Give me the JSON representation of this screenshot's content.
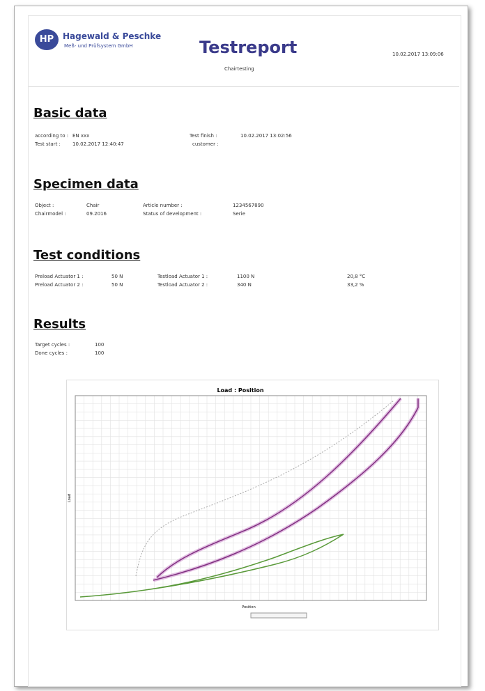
{
  "header": {
    "logo": "HP",
    "company": "Hagewald & Peschke",
    "company_sub": "Meß- und Prüfsystem GmbH",
    "title": "Testreport",
    "subtitle": "Chairtesting",
    "timestamp": "10.02.2017 13:09:06"
  },
  "basic_data": {
    "heading": "Basic data",
    "according_label": "according to :",
    "according_value": "EN xxx",
    "start_label": "Test start :",
    "start_value": "10.02.2017 12:40:47",
    "finish_label": "Test finish :",
    "finish_value": "10.02.2017 13:02:56",
    "customer_label": "customer :"
  },
  "specimen_data": {
    "heading": "Specimen data",
    "object_label": "Object :",
    "object_value": "Chair",
    "model_label": "Chairmodel :",
    "model_value": "09.2016",
    "article_label": "Article number :",
    "article_value": "1234567890",
    "status_label": "Status of development :",
    "status_value": "Serie"
  },
  "test_conditions": {
    "heading": "Test conditions",
    "pre1_label": "Preload Actuator 1 :",
    "pre1_value": "50 N",
    "pre2_label": "Preload Actuator 2 :",
    "pre2_value": "50 N",
    "test1_label": "Testload Actuator 1 :",
    "test1_value": "1100 N",
    "test2_label": "Testload Actuator 2 :",
    "test2_value": "340 N",
    "temperature": "20,8 °C",
    "humidity": "33,2 %"
  },
  "results": {
    "heading": "Results",
    "target_label": "Target cycles :",
    "target_value": "100",
    "done_label": "Done cycles :",
    "done_value": "100"
  },
  "chart": {
    "title": "Load : Position",
    "y_label": "Load",
    "x_label": "Position"
  }
}
